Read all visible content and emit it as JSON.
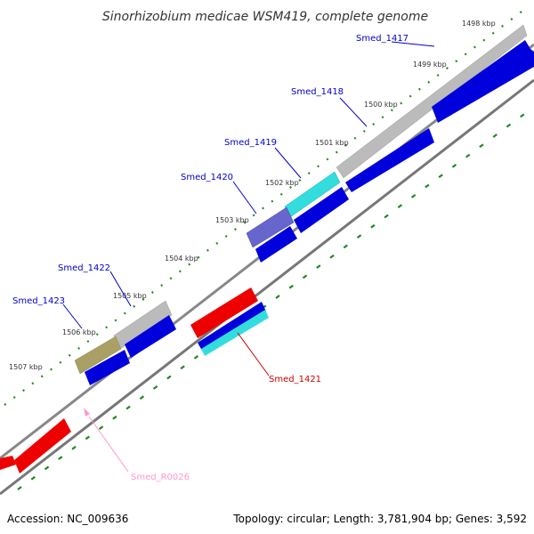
{
  "title": "Sinorhizobium medicae WSM419, complete genome",
  "footer": {
    "accession": "Accession: NC_009636",
    "summary": "Topology: circular; Length: 3,781,904 bp; Genes: 3,592"
  },
  "ticks": [
    "1498 kbp",
    "1499 kbp",
    "1500 kbp",
    "1501 kbp",
    "1502 kbp",
    "1503 kbp",
    "1504 kbp",
    "1505 kbp",
    "1506 kbp",
    "1507 kbp"
  ],
  "genes": [
    {
      "name": "Smed_1417",
      "color": "#0000cc"
    },
    {
      "name": "Smed_1418",
      "color": "#0000cc"
    },
    {
      "name": "Smed_1419",
      "color": "#0000cc"
    },
    {
      "name": "Smed_1420",
      "color": "#0000cc"
    },
    {
      "name": "Smed_1421",
      "color": "#cc0000"
    },
    {
      "name": "Smed_1422",
      "color": "#0000cc"
    },
    {
      "name": "Smed_1423",
      "color": "#0000cc"
    },
    {
      "name": "Smed_R0026",
      "color": "#ff99cc"
    }
  ],
  "colors": {
    "backbone": "#888888",
    "cds_blue": "#0000dd",
    "cds_red": "#ee0000",
    "cds_gray": "#bbbbbb",
    "cds_cyan": "#00dddd",
    "cds_purple": "#6666cc",
    "cds_olive": "#aaa066",
    "tick_green": "#228822"
  }
}
